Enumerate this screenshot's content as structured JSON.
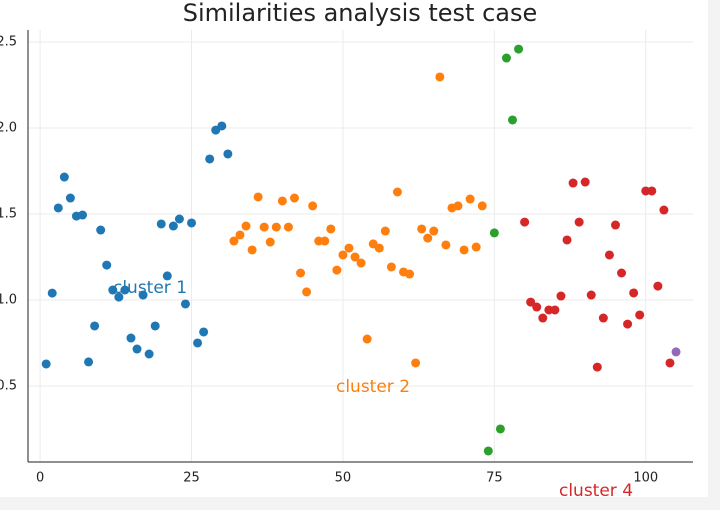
{
  "chart_data": {
    "type": "scatter",
    "title": "Similarities analysis test case",
    "series": [
      {
        "color": "#1f77b4",
        "x": [
          1,
          2,
          3,
          4,
          5,
          6,
          7,
          8,
          9,
          10,
          11,
          12,
          13,
          14,
          15,
          16,
          17,
          18,
          19,
          20,
          21,
          22,
          23,
          24,
          25,
          26,
          27,
          28,
          29,
          30,
          31
        ],
        "values": [
          0.628,
          1.04,
          1.535,
          1.715,
          1.593,
          1.488,
          1.494,
          0.64,
          0.849,
          1.407,
          1.203,
          1.058,
          1.017,
          1.058,
          0.779,
          0.715,
          1.029,
          0.686,
          0.849,
          1.442,
          1.14,
          1.43,
          1.471,
          0.977,
          1.448,
          0.75,
          0.814,
          1.82,
          1.988,
          2.012,
          1.849
        ]
      },
      {
        "color": "#ff7f0e",
        "x": [
          32,
          33,
          34,
          35,
          36,
          37,
          38,
          39,
          40,
          41,
          42,
          43,
          44,
          45,
          46,
          47,
          48,
          49,
          50,
          51,
          52,
          53,
          54,
          55,
          56,
          57,
          58,
          59,
          60,
          61,
          62,
          63,
          64,
          65,
          66,
          67,
          68,
          69,
          70,
          71,
          72,
          73
        ],
        "values": [
          1.343,
          1.378,
          1.43,
          1.291,
          1.599,
          1.424,
          1.337,
          1.424,
          1.576,
          1.424,
          1.593,
          1.157,
          1.047,
          1.547,
          1.343,
          1.343,
          1.413,
          1.174,
          1.262,
          1.302,
          1.25,
          1.215,
          0.773,
          1.326,
          1.302,
          1.401,
          1.192,
          1.628,
          1.163,
          1.151,
          0.634,
          1.413,
          1.36,
          1.401,
          2.297,
          1.32,
          1.535,
          1.547,
          1.291,
          1.587,
          1.308,
          1.547
        ]
      },
      {
        "color": "#2ca02c",
        "x": [
          74,
          75,
          76,
          77,
          78,
          79
        ],
        "values": [
          0.122,
          1.39,
          0.25,
          2.407,
          2.047,
          2.459
        ]
      },
      {
        "color": "#d62728",
        "x": [
          80,
          81,
          82,
          83,
          84,
          85,
          86,
          87,
          88,
          89,
          90,
          91,
          92,
          93,
          94,
          95,
          96,
          97,
          98,
          99,
          100,
          101,
          102,
          103,
          104
        ],
        "values": [
          1.453,
          0.988,
          0.959,
          0.895,
          0.942,
          0.942,
          1.023,
          1.349,
          1.68,
          1.453,
          1.686,
          1.029,
          0.61,
          0.895,
          1.262,
          1.436,
          1.157,
          0.86,
          1.041,
          0.913,
          1.634,
          1.634,
          1.081,
          1.523,
          0.634
        ]
      },
      {
        "color": "#9467bd",
        "x": [
          105
        ],
        "values": [
          0.698
        ]
      }
    ],
    "annotations": [
      {
        "text": "cluster 1",
        "color": "#1f77b4"
      },
      {
        "text": "cluster 2",
        "color": "#ff7f0e"
      },
      {
        "text": "cluster 4",
        "color": "#d62728"
      }
    ],
    "xlim": [
      -2,
      107.8
    ],
    "ylim": [
      0.058,
      2.57
    ],
    "xticks": [
      0,
      25,
      50,
      75,
      100
    ],
    "yticks": [
      {
        "value": 0.5,
        "label": "0.5"
      },
      {
        "value": 1,
        "label": "1.0"
      },
      {
        "value": 1.5,
        "label": "1.5"
      },
      {
        "value": 2,
        "label": "2.0"
      },
      {
        "value": 2.5,
        "label": "2.5"
      }
    ],
    "grid": true
  }
}
